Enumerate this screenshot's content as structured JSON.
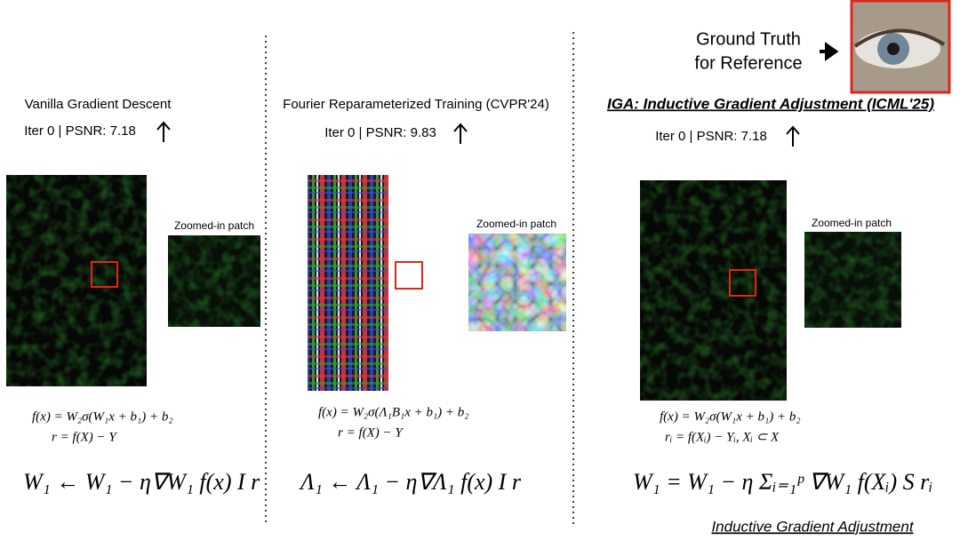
{
  "panels": [
    {
      "title": "Vanilla Gradient Descent",
      "status": "Iter 0 | PSNR: 7.18",
      "zoom_label": "Zoomed-in patch",
      "formula_1": "f(x) = W₂σ(W₁x + b₁) + b₂",
      "formula_2": "r = f(X) − Y",
      "update": "W₁ ← W₁ − η∇W₁ f(x) I r"
    },
    {
      "title": "Fourier Reparameterized Training (CVPR'24)",
      "status": "Iter 0 | PSNR: 9.83",
      "zoom_label": "Zoomed-in patch",
      "formula_1": "f(x) = W₂σ(Λ₁B₁x + b₁) + b₂",
      "formula_2": "r = f(X) − Y",
      "update": "Λ₁ ← Λ₁ − η∇Λ₁ f(x) I r"
    },
    {
      "title": "IGA: Inductive Gradient Adjustment (ICML'25)",
      "status": "Iter 0 | PSNR: 7.18",
      "zoom_label": "Zoomed-in patch",
      "formula_1": "f(x) = W₂σ(W₁x + b₁) + b₂",
      "formula_2": "rᵢ = f(Xᵢ) − Yᵢ, Xᵢ ⊂ X",
      "update": "W₁ = W₁ − η Σᵢ₌₁ᵖ ∇W₁ f(Xᵢ) S rᵢ"
    }
  ],
  "reference": {
    "line_1": "Ground Truth",
    "line_2": "for Reference"
  },
  "caption": "Inductive Gradient Adjustment"
}
